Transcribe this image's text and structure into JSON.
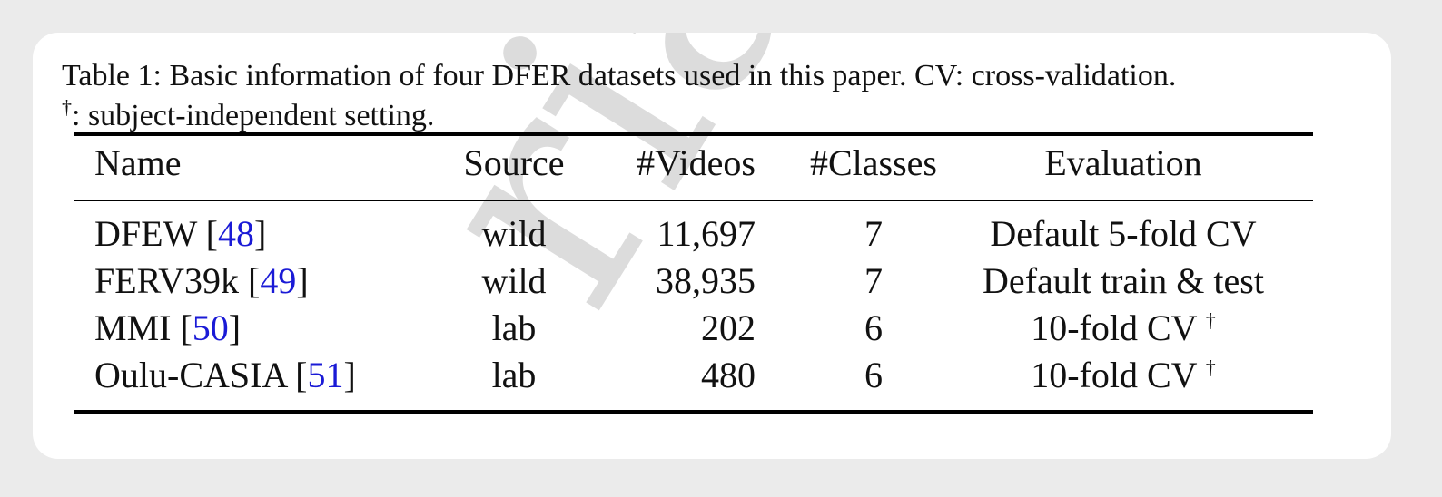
{
  "watermark": "rial",
  "caption": {
    "line1": "Table 1: Basic information of four DFER datasets used in this paper.  CV: cross-validation.",
    "dagger": "†",
    "line2_rest": ": subject-independent setting."
  },
  "table": {
    "headers": [
      "Name",
      "Source",
      "#Videos",
      "#Classes",
      "Evaluation"
    ],
    "rows": [
      {
        "name": "DFEW",
        "cite": "48",
        "source": "wild",
        "videos": "11,697",
        "classes": "7",
        "evaluation": "Default 5-fold CV",
        "dagger": ""
      },
      {
        "name": "FERV39k",
        "cite": "49",
        "source": "wild",
        "videos": "38,935",
        "classes": "7",
        "evaluation": "Default train & test",
        "dagger": ""
      },
      {
        "name": "MMI",
        "cite": "50",
        "source": "lab",
        "videos": "202",
        "classes": "6",
        "evaluation": "10-fold CV",
        "dagger": "†"
      },
      {
        "name": "Oulu-CASIA",
        "cite": "51",
        "source": "lab",
        "videos": "480",
        "classes": "6",
        "evaluation": "10-fold CV",
        "dagger": "†"
      }
    ]
  }
}
